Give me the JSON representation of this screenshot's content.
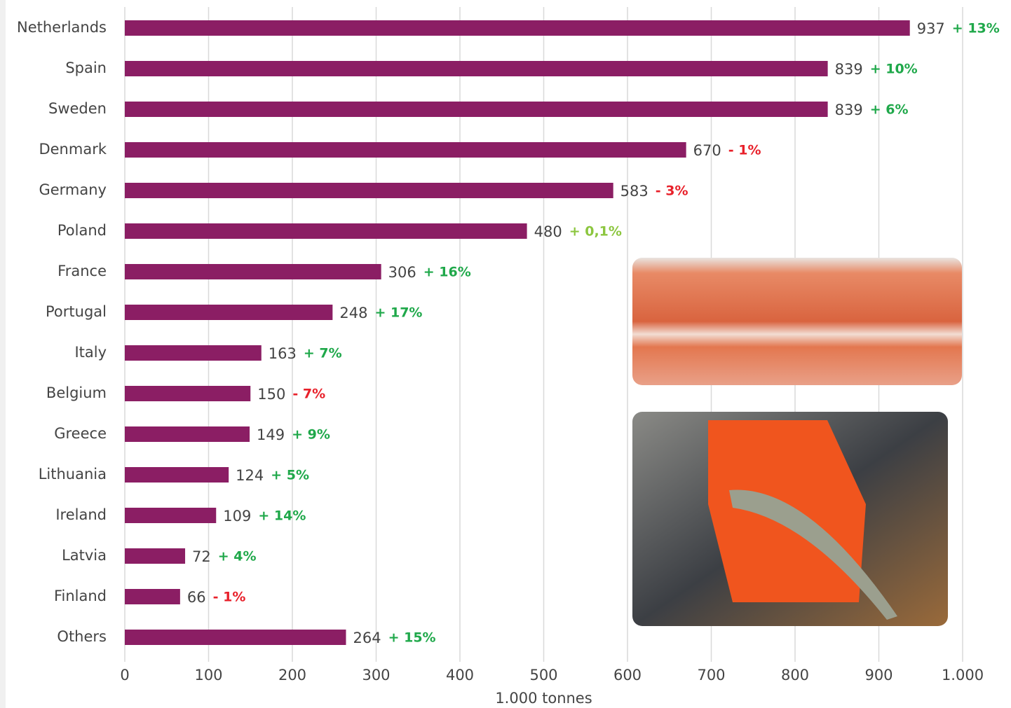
{
  "chart_data": {
    "type": "hbar",
    "categories": [
      "Netherlands",
      "Spain",
      "Sweden",
      "Denmark",
      "Germany",
      "Poland",
      "France",
      "Portugal",
      "Italy",
      "Belgium",
      "Greece",
      "Lithuania",
      "Ireland",
      "Latvia",
      "Finland",
      "Others"
    ],
    "values": [
      937,
      839,
      839,
      670,
      583,
      480,
      306,
      248,
      163,
      150,
      149,
      124,
      109,
      72,
      66,
      264
    ],
    "annotations": [
      "+ 13%",
      "+ 10%",
      "+ 6%",
      "- 1%",
      "- 3%",
      "+ 0,1%",
      "+ 16%",
      "+ 17%",
      "+ 7%",
      "- 7%",
      "+ 9%",
      "+ 5%",
      "+ 14%",
      "+ 4%",
      "- 1%",
      "+ 15%"
    ],
    "annotation_colors": [
      "#1fa84a",
      "#1fa84a",
      "#1fa84a",
      "#e8202a",
      "#e8202a",
      "#8cc63f",
      "#1fa84a",
      "#1fa84a",
      "#1fa84a",
      "#e8202a",
      "#1fa84a",
      "#1fa84a",
      "#1fa84a",
      "#1fa84a",
      "#e8202a",
      "#1fa84a"
    ],
    "color": "#8b1e64",
    "xlabel": "1.000 tonnes",
    "xlim": [
      0,
      1000
    ],
    "xticks": [
      0,
      100,
      200,
      300,
      400,
      500,
      600,
      700,
      800,
      900,
      {
        "value": 1000,
        "label": "1.000"
      }
    ],
    "grid": true
  }
}
